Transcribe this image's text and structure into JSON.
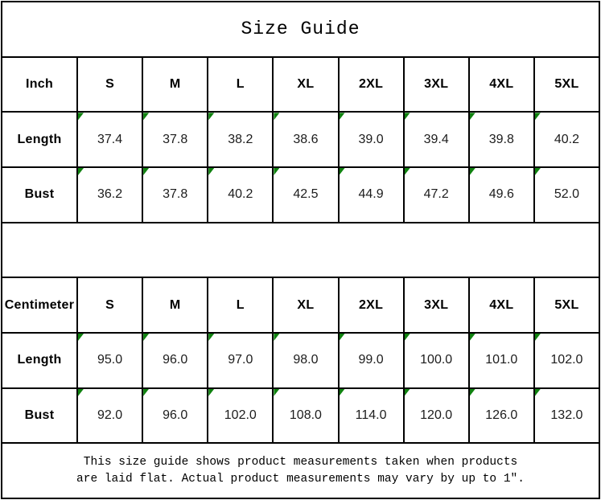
{
  "page": {
    "title": "Size Guide",
    "background": "#ffffff",
    "line_color": "#000000",
    "text_color": "#000000",
    "number_color": "#1c1c1c",
    "flag_color": "#108210"
  },
  "size_columns": [
    "S",
    "M",
    "L",
    "XL",
    "2XL",
    "3XL",
    "4XL",
    "5XL"
  ],
  "tables": [
    {
      "unit": "Inch",
      "rows": [
        {
          "label": "Length",
          "values": [
            "37.4",
            "37.8",
            "38.2",
            "38.6",
            "39.0",
            "39.4",
            "39.8",
            "40.2"
          ]
        },
        {
          "label": "Bust",
          "values": [
            "36.2",
            "37.8",
            "40.2",
            "42.5",
            "44.9",
            "47.2",
            "49.6",
            "52.0"
          ]
        }
      ]
    },
    {
      "unit": "Centimeter",
      "rows": [
        {
          "label": "Length",
          "values": [
            "95.0",
            "96.0",
            "97.0",
            "98.0",
            "99.0",
            "100.0",
            "101.0",
            "102.0"
          ]
        },
        {
          "label": "Bust",
          "values": [
            "92.0",
            "96.0",
            "102.0",
            "108.0",
            "114.0",
            "120.0",
            "126.0",
            "132.0"
          ]
        }
      ]
    }
  ],
  "footer": {
    "line1": "This size guide shows product measurements taken when products",
    "line2": "are laid flat. Actual product measurements may vary by up to 1″."
  }
}
